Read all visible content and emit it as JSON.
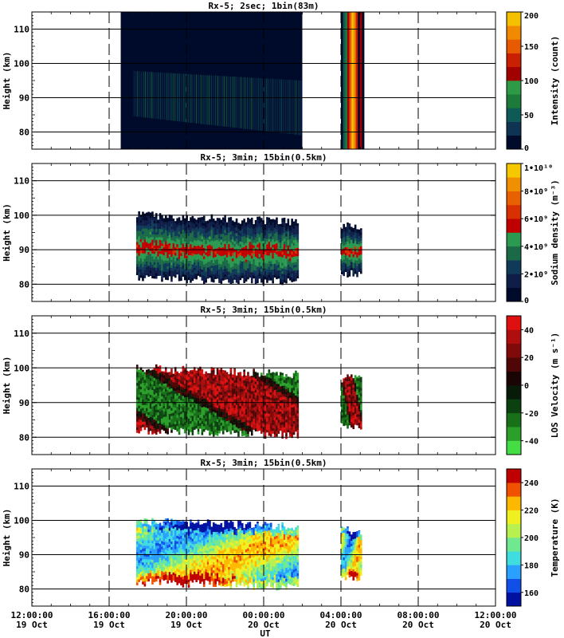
{
  "chart_data": [
    {
      "type": "heatmap",
      "title": "Rx-5;  2sec; 1bin(83m)",
      "ylabel": "Height (km)",
      "ylim": [
        75,
        115
      ],
      "yticks": [
        80,
        90,
        100,
        110
      ],
      "colorbar": {
        "label": "Intensity (count)",
        "range": [
          0,
          200
        ],
        "ticks": [
          "0",
          "50",
          "100",
          "150",
          "200"
        ]
      },
      "data_windows": [
        [
          16.6,
          26.0
        ],
        [
          28.0,
          29.2
        ]
      ]
    },
    {
      "type": "heatmap",
      "title": "Rx-5; 3min; 15bin(0.5km)",
      "ylabel": "Height (km)",
      "ylim": [
        75,
        115
      ],
      "yticks": [
        80,
        90,
        100,
        110
      ],
      "colorbar": {
        "label": "Sodium density (m⁻³)",
        "range": [
          0,
          10000000000.0
        ],
        "ticks": [
          "0",
          "2•10⁹",
          "4•10⁹",
          "6•10⁹",
          "8•10⁹",
          "1•10¹⁰"
        ]
      },
      "data_windows": [
        [
          17.4,
          25.8
        ],
        [
          28.0,
          29.0
        ]
      ]
    },
    {
      "type": "heatmap",
      "title": "Rx-5; 3min; 15bin(0.5km)",
      "ylabel": "Height (km)",
      "ylim": [
        75,
        115
      ],
      "yticks": [
        80,
        90,
        100,
        110
      ],
      "colorbar": {
        "label": "LOS Velocity (m s⁻¹)",
        "range": [
          -50,
          50
        ],
        "ticks": [
          "-40",
          "-20",
          "0",
          "20",
          "40"
        ]
      },
      "data_windows": [
        [
          17.4,
          25.8
        ],
        [
          28.0,
          29.0
        ]
      ]
    },
    {
      "type": "heatmap",
      "title": "Rx-5; 3min; 15bin(0.5km)",
      "ylabel": "Height (km)",
      "ylim": [
        75,
        115
      ],
      "yticks": [
        80,
        90,
        100,
        110
      ],
      "colorbar": {
        "label": "Temperature (K)",
        "range": [
          150,
          250
        ],
        "ticks": [
          "160",
          "180",
          "200",
          "220",
          "240"
        ]
      },
      "data_windows": [
        [
          17.4,
          25.8
        ],
        [
          28.0,
          29.0
        ]
      ]
    }
  ],
  "xaxis": {
    "label": "UT",
    "range_hours": [
      12,
      36
    ],
    "ticks": [
      {
        "time": "12:00:00",
        "date": "19 Oct"
      },
      {
        "time": "16:00:00",
        "date": "19 Oct"
      },
      {
        "time": "20:00:00",
        "date": "19 Oct"
      },
      {
        "time": "00:00:00",
        "date": "20 Oct"
      },
      {
        "time": "04:00:00",
        "date": "20 Oct"
      },
      {
        "time": "08:00:00",
        "date": "20 Oct"
      },
      {
        "time": "12:00:00",
        "date": "20 Oct"
      }
    ]
  },
  "colors": {
    "intensity": [
      "#000a2a",
      "#0f3352",
      "#0d5a57",
      "#1e7a3a",
      "#2e9a45",
      "#a00000",
      "#c82000",
      "#e85a00",
      "#f28a00",
      "#f5c000"
    ],
    "sodium": [
      "#000a2a",
      "#0f1e48",
      "#0f3a58",
      "#1a6a48",
      "#2a9a50",
      "#c00000",
      "#d83000",
      "#e86000",
      "#f09000",
      "#f6c800"
    ],
    "velocity": [
      "#44dd44",
      "#2aa02a",
      "#187018",
      "#0c4010",
      "#081a08",
      "#1a0404",
      "#500606",
      "#800a0a",
      "#b00e0e",
      "#e01010"
    ],
    "temperature": [
      "#0010a0",
      "#1050e8",
      "#2aa0ff",
      "#40dde0",
      "#70e890",
      "#b8f050",
      "#f0f020",
      "#ffb800",
      "#f05000",
      "#c00000"
    ]
  }
}
